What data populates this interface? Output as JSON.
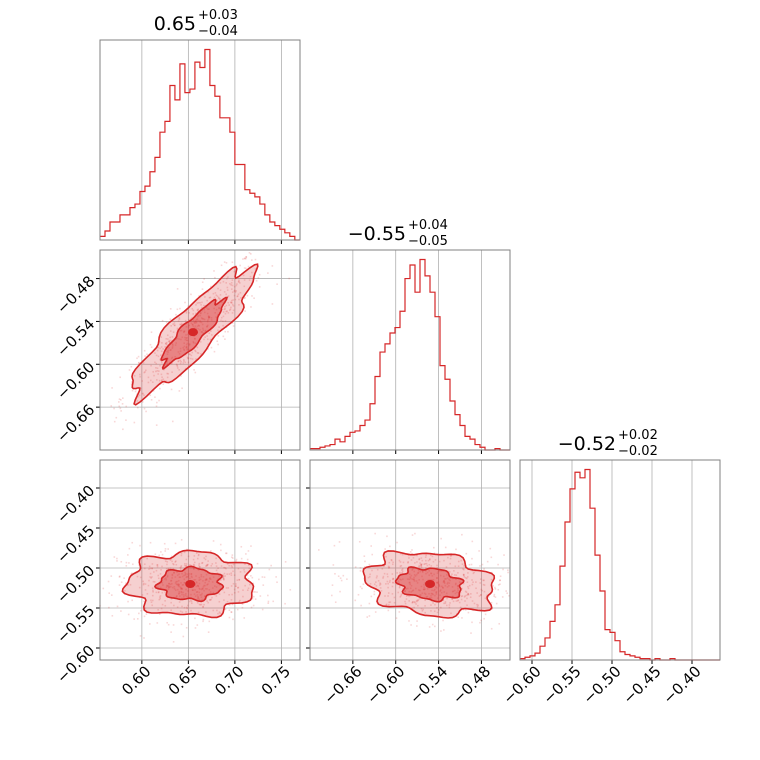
{
  "colors": {
    "accent": "#d62728",
    "grid": "#b0b0b0",
    "axes": "#808080"
  },
  "chart_data": [
    {
      "type": "histogram",
      "panel": "0,0",
      "title": {
        "value": "0.65",
        "plus": "+0.03",
        "minus": "−0.04"
      },
      "xlim": [
        0.555,
        0.77
      ],
      "x_ticks": [
        0.6,
        0.65,
        0.7,
        0.75
      ],
      "bins": {
        "start": 0.555,
        "width": 0.00537,
        "counts": [
          2,
          5,
          10,
          10,
          14,
          14,
          18,
          20,
          27,
          30,
          38,
          46,
          60,
          66,
          86,
          78,
          98,
          82,
          84,
          99,
          96,
          106,
          86,
          80,
          68,
          68,
          60,
          42,
          42,
          28,
          26,
          24,
          20,
          14,
          10,
          8,
          6,
          4,
          2,
          0
        ]
      },
      "grid": true
    },
    {
      "type": "histogram",
      "panel": "1,1",
      "title": {
        "value": "−0.55",
        "plus": "+0.04",
        "minus": "−0.05"
      },
      "xlim": [
        -0.72,
        -0.44
      ],
      "x_ticks": [
        -0.66,
        -0.6,
        -0.54,
        -0.48
      ],
      "x_tick_labels": [
        "−0.66",
        "−0.60",
        "−0.54",
        "−0.48"
      ],
      "bins": {
        "start": -0.72,
        "width": 0.007,
        "counts": [
          1,
          1,
          2,
          3,
          4,
          8,
          6,
          10,
          13,
          14,
          18,
          22,
          34,
          54,
          72,
          78,
          86,
          90,
          102,
          126,
          136,
          116,
          140,
          128,
          116,
          98,
          62,
          52,
          36,
          26,
          18,
          10,
          8,
          4,
          2,
          0,
          0,
          1,
          0,
          0
        ]
      },
      "grid": true
    },
    {
      "type": "histogram",
      "panel": "2,2",
      "title": {
        "value": "−0.52",
        "plus": "+0.02",
        "minus": "−0.02"
      },
      "xlim": [
        -0.615,
        -0.365
      ],
      "x_ticks": [
        -0.6,
        -0.55,
        -0.5,
        -0.45,
        -0.4
      ],
      "x_tick_labels": [
        "−0.60",
        "−0.55",
        "−0.50",
        "−0.45",
        "−0.40"
      ],
      "bins": {
        "start": -0.615,
        "width": 0.00625,
        "counts": [
          1,
          2,
          3,
          5,
          10,
          16,
          28,
          40,
          68,
          100,
          124,
          136,
          132,
          138,
          110,
          76,
          50,
          22,
          20,
          14,
          6,
          4,
          3,
          2,
          1,
          1,
          0,
          1,
          0,
          0,
          1,
          0,
          0,
          0,
          0,
          0,
          0,
          0,
          0,
          0
        ]
      },
      "grid": true
    },
    {
      "type": "contour2d",
      "panel": "1,0",
      "xlim": [
        0.555,
        0.77
      ],
      "ylim": [
        -0.72,
        -0.44
      ],
      "x_ticks": [
        0.6,
        0.65,
        0.7,
        0.75
      ],
      "y_ticks": [
        -0.66,
        -0.6,
        -0.54,
        -0.48
      ],
      "y_tick_labels": [
        "−0.66",
        "−0.60",
        "−0.54",
        "−0.48"
      ],
      "center": [
        0.655,
        -0.555
      ],
      "sigma": [
        0.033,
        0.045
      ],
      "correlation": 0.88,
      "levels": [
        0.39,
        0.86
      ],
      "grid": true
    },
    {
      "type": "contour2d",
      "panel": "2,0",
      "xlim": [
        0.555,
        0.77
      ],
      "ylim": [
        -0.615,
        -0.365
      ],
      "x_ticks": [
        0.6,
        0.65,
        0.7,
        0.75
      ],
      "x_tick_labels": [
        "0.60",
        "0.65",
        "0.70",
        "0.75"
      ],
      "y_ticks": [
        -0.6,
        -0.55,
        -0.5,
        -0.45,
        -0.4
      ],
      "y_tick_labels": [
        "−0.60",
        "−0.55",
        "−0.50",
        "−0.45",
        "−0.40"
      ],
      "center": [
        0.652,
        -0.52
      ],
      "sigma": [
        0.034,
        0.02
      ],
      "correlation": 0.0,
      "levels": [
        0.39,
        0.86
      ],
      "grid": true
    },
    {
      "type": "contour2d",
      "panel": "2,1",
      "xlim": [
        -0.72,
        -0.44
      ],
      "ylim": [
        -0.615,
        -0.365
      ],
      "x_ticks": [
        -0.66,
        -0.6,
        -0.54,
        -0.48
      ],
      "x_tick_labels": [
        "−0.66",
        "−0.60",
        "−0.54",
        "−0.48"
      ],
      "y_ticks": [
        -0.6,
        -0.55,
        -0.5,
        -0.45,
        -0.4
      ],
      "center": [
        -0.552,
        -0.52
      ],
      "sigma": [
        0.045,
        0.02
      ],
      "correlation": -0.2,
      "levels": [
        0.39,
        0.86
      ],
      "grid": true
    }
  ]
}
